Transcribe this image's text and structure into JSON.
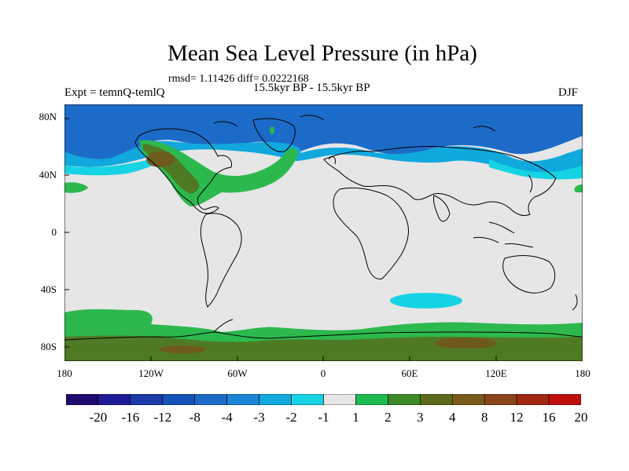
{
  "title": "Mean Sea Level Pressure (in hPa)",
  "stats": "rmsd= 1.11426 diff= 0.0222168",
  "experiment": "Expt = temnQ-temlQ",
  "period": "15.5kyr BP - 15.5kyr BP",
  "season": "DJF",
  "lat_labels": [
    "80N",
    "40N",
    "0",
    "40S",
    "80S"
  ],
  "lon_labels": [
    "180",
    "120W",
    "60W",
    "0",
    "60E",
    "120E",
    "180"
  ],
  "colorbar": {
    "labels": [
      "-20",
      "-16",
      "-12",
      "-8",
      "-4",
      "-3",
      "-2",
      "-1",
      "1",
      "2",
      "3",
      "4",
      "8",
      "12",
      "16",
      "20"
    ],
    "colors": [
      "#1e0a6e",
      "#1f1b96",
      "#1b3aa8",
      "#1653b8",
      "#1d6bc9",
      "#1b84d6",
      "#10a8dd",
      "#16d3e3",
      "#e6e6e6",
      "#1fba4e",
      "#3b8a27",
      "#5a6a1a",
      "#7a5a1a",
      "#8a4418",
      "#a02814",
      "#c0100e"
    ]
  },
  "field_colors": {
    "neutral": "#e6e6e6",
    "ocean_blue": "#1d6bc9",
    "light_blue": "#10a8dd",
    "cyan": "#16d3e3",
    "green": "#2db84e",
    "olive": "#4f7a23",
    "brown": "#6e5a1c",
    "coast": "#000000"
  }
}
